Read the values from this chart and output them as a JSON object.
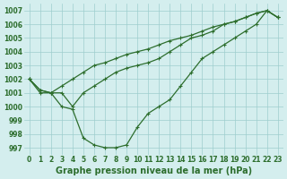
{
  "xlabel": "Graphe pression niveau de la mer (hPa)",
  "x": [
    0,
    1,
    2,
    3,
    4,
    5,
    6,
    7,
    8,
    9,
    10,
    11,
    12,
    13,
    14,
    15,
    16,
    17,
    18,
    19,
    20,
    21,
    22,
    23
  ],
  "line1": [
    1002,
    1001,
    1001,
    1001.5,
    1002,
    1002.5,
    1003,
    1003.2,
    1003.5,
    1003.8,
    1004,
    1004.2,
    1004.5,
    1004.8,
    1005,
    1005.2,
    1005.5,
    1005.8,
    1006,
    1006.2,
    1006.5,
    1006.8,
    1007,
    1006.5
  ],
  "line2": [
    1002,
    1001.2,
    1001,
    1000,
    999.8,
    997.7,
    997.2,
    997,
    997,
    997.2,
    998.5,
    999.5,
    1000,
    1000.5,
    1001.5,
    1002.5,
    1003.5,
    1004,
    1004.5,
    1005,
    1005.5,
    1006,
    1007,
    1006.5
  ],
  "line3": [
    1002,
    1001.2,
    1001,
    1001,
    1000,
    1001,
    1001.5,
    1002,
    1002.5,
    1002.8,
    1003,
    1003.2,
    1003.5,
    1004,
    1004.5,
    1005,
    1005.2,
    1005.5,
    1006,
    1006.2,
    1006.5,
    1006.8,
    1007,
    1006.5
  ],
  "ylim": [
    996.5,
    1007.5
  ],
  "yticks": [
    997,
    998,
    999,
    1000,
    1001,
    1002,
    1003,
    1004,
    1005,
    1006,
    1007
  ],
  "bg_color": "#d4eeee",
  "line_color": "#2d6e2d",
  "grid_color": "#9ecece",
  "label_color": "#2d6e2d",
  "tick_fontsize": 5.5,
  "xlabel_fontsize": 7
}
